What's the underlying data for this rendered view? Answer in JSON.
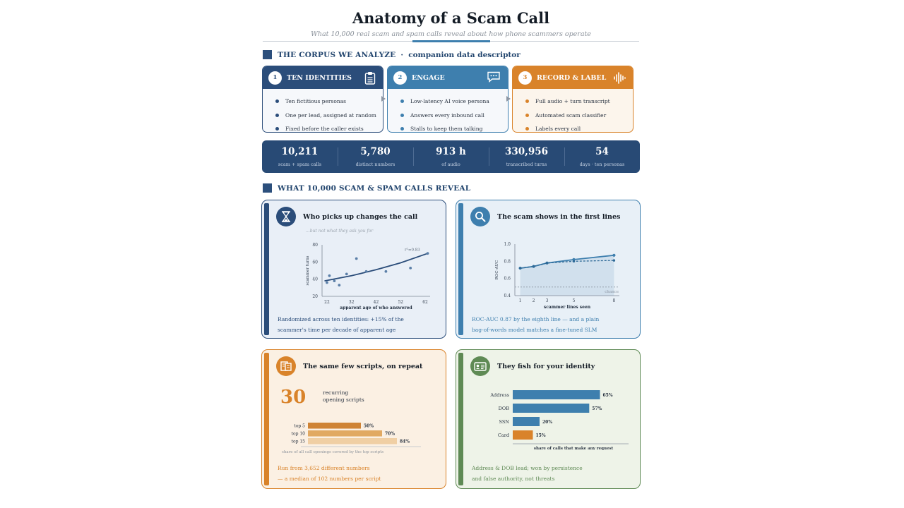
{
  "header": {
    "title": "Anatomy of a Scam Call",
    "subtitle": "What 10,000 real scam and spam calls reveal about how phone scammers operate"
  },
  "corpus": {
    "heading": "THE CORPUS WE ANALYZE",
    "subheading": "companion data descriptor",
    "steps": [
      {
        "num": "1",
        "title": "TEN IDENTITIES",
        "icon": "clipboard-icon",
        "color": "#2b4d7a",
        "items": [
          "Ten fictitious personas",
          "One per lead, assigned at random",
          "Fixed before the caller exists"
        ]
      },
      {
        "num": "2",
        "title": "ENGAGE",
        "icon": "chat-bubble-icon",
        "color": "#3e7fae",
        "items": [
          "Low-latency AI voice persona",
          "Answers every inbound call",
          "Stalls to keep them talking"
        ]
      },
      {
        "num": "3",
        "title": "RECORD & LABEL",
        "icon": "waveform-icon",
        "color": "#d9832a",
        "items": [
          "Full audio + turn transcript",
          "Automated scam classifier",
          "Labels every call"
        ]
      }
    ],
    "stats": [
      {
        "value": "10,211",
        "label": "scam + spam calls"
      },
      {
        "value": "5,780",
        "label": "distinct numbers"
      },
      {
        "value": "913 h",
        "label": "of audio"
      },
      {
        "value": "330,956",
        "label": "transcribed turns"
      },
      {
        "value": "54",
        "label": "days · ten personas"
      }
    ]
  },
  "reveal": {
    "heading": "WHAT 10,000 SCAM & SPAM CALLS REVEAL",
    "cards": {
      "age": {
        "title": "Who picks up changes the call",
        "icon": "hourglass-icon",
        "note": "...but not what they ask you for",
        "footer": [
          "Randomized across ten identities: +15% of the",
          "scammer's time per decade of apparent age"
        ]
      },
      "roc": {
        "title": "The scam shows in the first lines",
        "icon": "search-icon",
        "footer": [
          "ROC-AUC 0.87 by the eighth line — and a plain",
          "bag-of-words model matches a fine-tuned SLM"
        ]
      },
      "scripts": {
        "title": "The same few scripts, on repeat",
        "icon": "script-icon",
        "big_number": "30",
        "big_label_1": "recurring",
        "big_label_2": "opening scripts",
        "footer": [
          "Run from 3,652 different numbers",
          "— a median of 102 numbers per script"
        ]
      },
      "identity": {
        "title": "They fish for your identity",
        "icon": "id-card-icon",
        "footer": [
          "Address & DOB lead; won by persistence",
          "and false authority, not threats"
        ]
      }
    }
  },
  "colors": {
    "navy": "#2b4d7a",
    "blue": "#3e7fae",
    "orange": "#d9832a",
    "green": "#5f8a55"
  },
  "chart_data": [
    {
      "type": "scatter",
      "title": "Who picks up changes the call",
      "xlabel": "apparent age of who answered",
      "ylabel": "scammer turns",
      "xlim": [
        20,
        64
      ],
      "ylim": [
        20,
        80
      ],
      "x_ticks": [
        "22",
        "32",
        "42",
        "52",
        "62"
      ],
      "y_ticks": [
        "20",
        "40",
        "60",
        "80"
      ],
      "points": [
        {
          "x": 22,
          "y": 36
        },
        {
          "x": 23,
          "y": 44
        },
        {
          "x": 25,
          "y": 38
        },
        {
          "x": 27,
          "y": 33
        },
        {
          "x": 30,
          "y": 46
        },
        {
          "x": 34,
          "y": 64
        },
        {
          "x": 38,
          "y": 49
        },
        {
          "x": 46,
          "y": 49
        },
        {
          "x": 56,
          "y": 53
        },
        {
          "x": 63,
          "y": 70
        }
      ],
      "trend": [
        {
          "x": 21,
          "y": 38
        },
        {
          "x": 32,
          "y": 44
        },
        {
          "x": 42,
          "y": 51
        },
        {
          "x": 52,
          "y": 59
        },
        {
          "x": 63,
          "y": 70
        }
      ],
      "annotation": "r²=0.83"
    },
    {
      "type": "line",
      "title": "The scam shows in the first lines",
      "xlabel": "scammer lines seen",
      "ylabel": "ROC-AUC",
      "xlim": [
        0.6,
        8.4
      ],
      "ylim": [
        0.4,
        1.0
      ],
      "x_ticks": [
        "1",
        "2",
        "3",
        "5",
        "8"
      ],
      "y_ticks": [
        "0.4",
        "0.6",
        "0.8",
        "1.0"
      ],
      "series": [
        {
          "x": [
            1,
            2,
            3,
            5,
            8
          ],
          "values": [
            0.72,
            0.74,
            0.78,
            0.82,
            0.87
          ],
          "style": "solid"
        },
        {
          "x": [
            1,
            2,
            3,
            5,
            8
          ],
          "values": [
            0.72,
            0.74,
            0.78,
            0.8,
            0.81
          ],
          "style": "dashed"
        }
      ],
      "baseline": {
        "value": 0.5,
        "label": "chance"
      }
    },
    {
      "type": "bar",
      "orientation": "horizontal",
      "categories": [
        "top 5",
        "top 10",
        "top 15"
      ],
      "values": [
        50,
        70,
        84
      ],
      "value_labels": [
        "50%",
        "70%",
        "84%"
      ],
      "xlabel": "share of all call openings covered by the top scripts",
      "xlim": [
        0,
        100
      ]
    },
    {
      "type": "bar",
      "orientation": "horizontal",
      "categories": [
        "Address",
        "DOB",
        "SSN",
        "Card"
      ],
      "values": [
        65,
        57,
        20,
        15
      ],
      "value_labels": [
        "65%",
        "57%",
        "20%",
        "15%"
      ],
      "bar_colors": [
        "#3e7fae",
        "#3e7fae",
        "#3e7fae",
        "#d9832a"
      ],
      "xlabel": "share of calls that make any request",
      "xlim": [
        0,
        100
      ]
    }
  ]
}
